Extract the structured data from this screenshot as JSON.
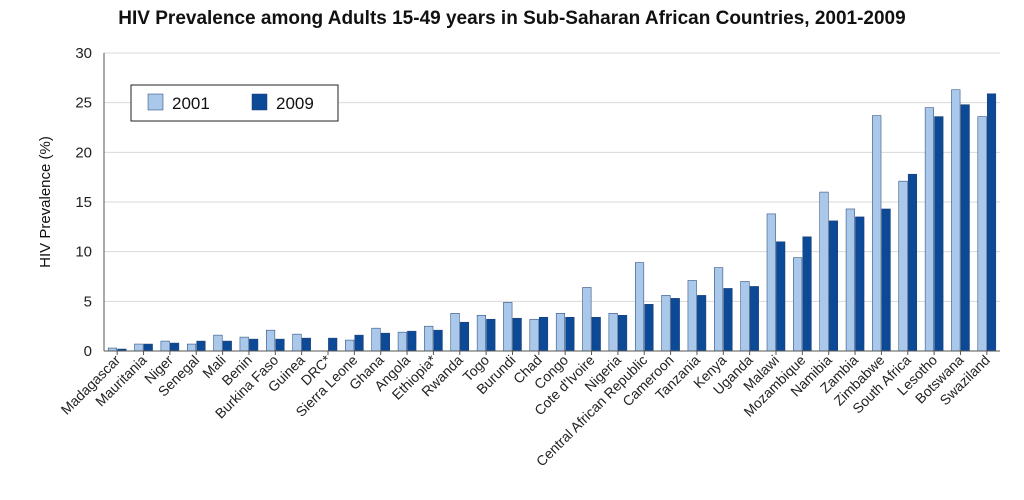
{
  "chart_data": {
    "type": "bar",
    "title": "HIV Prevalence among Adults 15-49 years in Sub-Saharan African Countries, 2001-2009",
    "xlabel": "",
    "ylabel": "HIV Prevalence (%)",
    "ylim": [
      0,
      30
    ],
    "yticks": [
      0,
      5,
      10,
      15,
      20,
      25,
      30
    ],
    "grid": true,
    "legend_position": "top-left",
    "colors": {
      "2001": "#a9c8ea",
      "2009": "#0c4a97",
      "grid": "#d9d9d9",
      "plot_bg": "#ffffff"
    },
    "categories": [
      "Madagascar",
      "Mauritania",
      "Niger",
      "Senegal",
      "Mali",
      "Benin",
      "Burkina Faso",
      "Guinea",
      "DRC*",
      "Sierra Leone",
      "Ghana",
      "Angola",
      "Ethiopia*",
      "Rwanda",
      "Togo",
      "Burundi",
      "Chad",
      "Congo",
      "Cote d'Ivoire",
      "Nigeria",
      "Central African Republic",
      "Cameroon",
      "Tanzania",
      "Kenya",
      "Uganda",
      "Malawi",
      "Mozambique",
      "Namibia",
      "Zambia",
      "Zimbabwe",
      "South Africa",
      "Lesotho",
      "Botswana",
      "Swaziland"
    ],
    "series": [
      {
        "name": "2001",
        "values": [
          0.3,
          0.7,
          1.0,
          0.7,
          1.6,
          1.4,
          2.1,
          1.7,
          null,
          1.1,
          2.3,
          1.9,
          2.5,
          3.8,
          3.6,
          4.9,
          3.2,
          3.8,
          6.4,
          3.8,
          8.9,
          5.6,
          7.1,
          8.4,
          7.0,
          13.8,
          9.4,
          16.0,
          14.3,
          23.7,
          17.1,
          24.5,
          26.3,
          23.6
        ]
      },
      {
        "name": "2009",
        "values": [
          0.2,
          0.7,
          0.8,
          1.0,
          1.0,
          1.2,
          1.2,
          1.3,
          1.3,
          1.6,
          1.8,
          2.0,
          2.1,
          2.9,
          3.2,
          3.3,
          3.4,
          3.4,
          3.4,
          3.6,
          4.7,
          5.3,
          5.6,
          6.3,
          6.5,
          11.0,
          11.5,
          13.1,
          13.5,
          14.3,
          17.8,
          23.6,
          24.8,
          25.9
        ]
      }
    ]
  }
}
